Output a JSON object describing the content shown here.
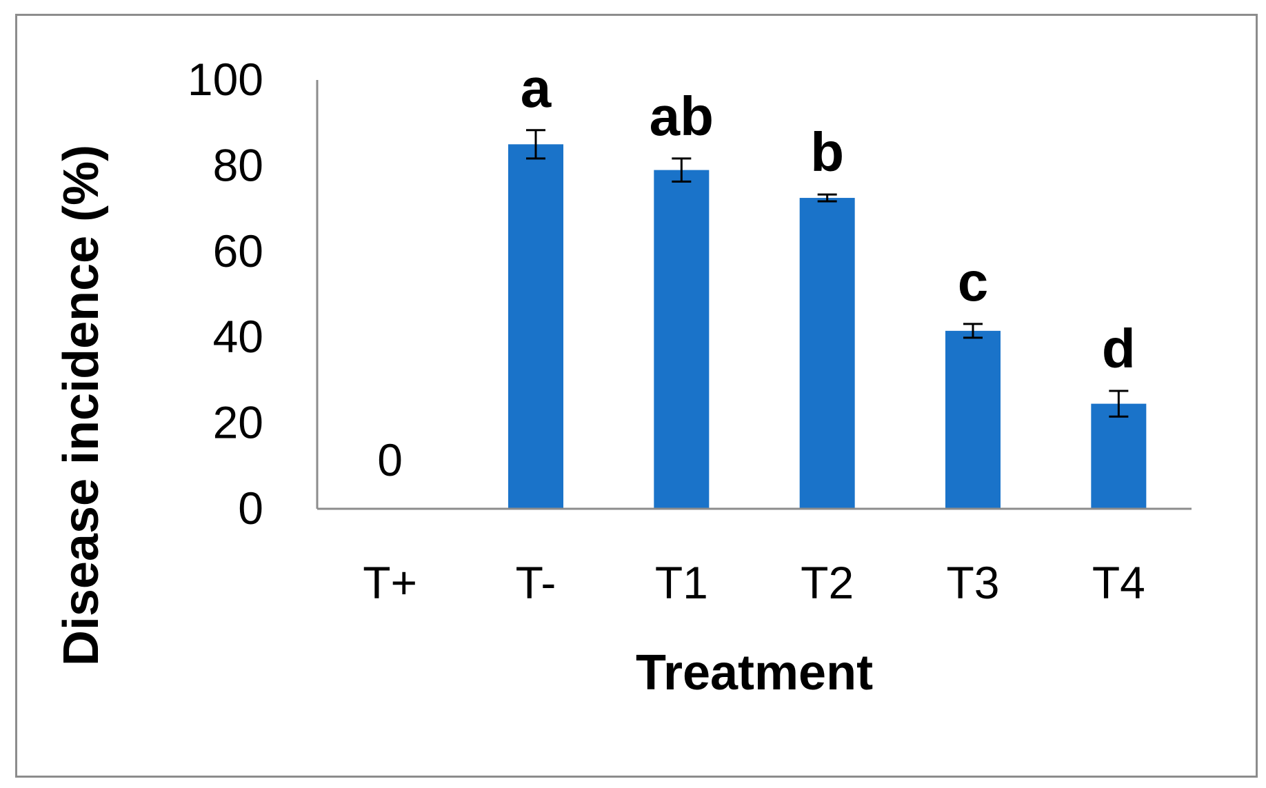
{
  "chart_data": {
    "type": "bar",
    "title": "",
    "xlabel": "Treatment",
    "ylabel": "Disease incidence (%)",
    "ylim": [
      0,
      100
    ],
    "yticks": [
      0,
      20,
      40,
      60,
      80,
      100
    ],
    "yticks_text": [
      "0",
      "20",
      "40",
      "60",
      "80",
      "100"
    ],
    "categories": [
      "T+",
      "T-",
      "T1",
      "T2",
      "T3",
      "T4"
    ],
    "values": [
      0,
      85,
      79,
      72.5,
      41.5,
      24.5
    ],
    "errors": [
      0,
      3.3,
      2.7,
      0.8,
      1.6,
      3
    ],
    "significance": [
      "",
      "a",
      "ab",
      "b",
      "c",
      "d"
    ],
    "value_labels": [
      "0",
      "",
      "",
      "",
      "",
      ""
    ],
    "bar_color": "#1a73c9",
    "grid": false,
    "legend": "none"
  }
}
